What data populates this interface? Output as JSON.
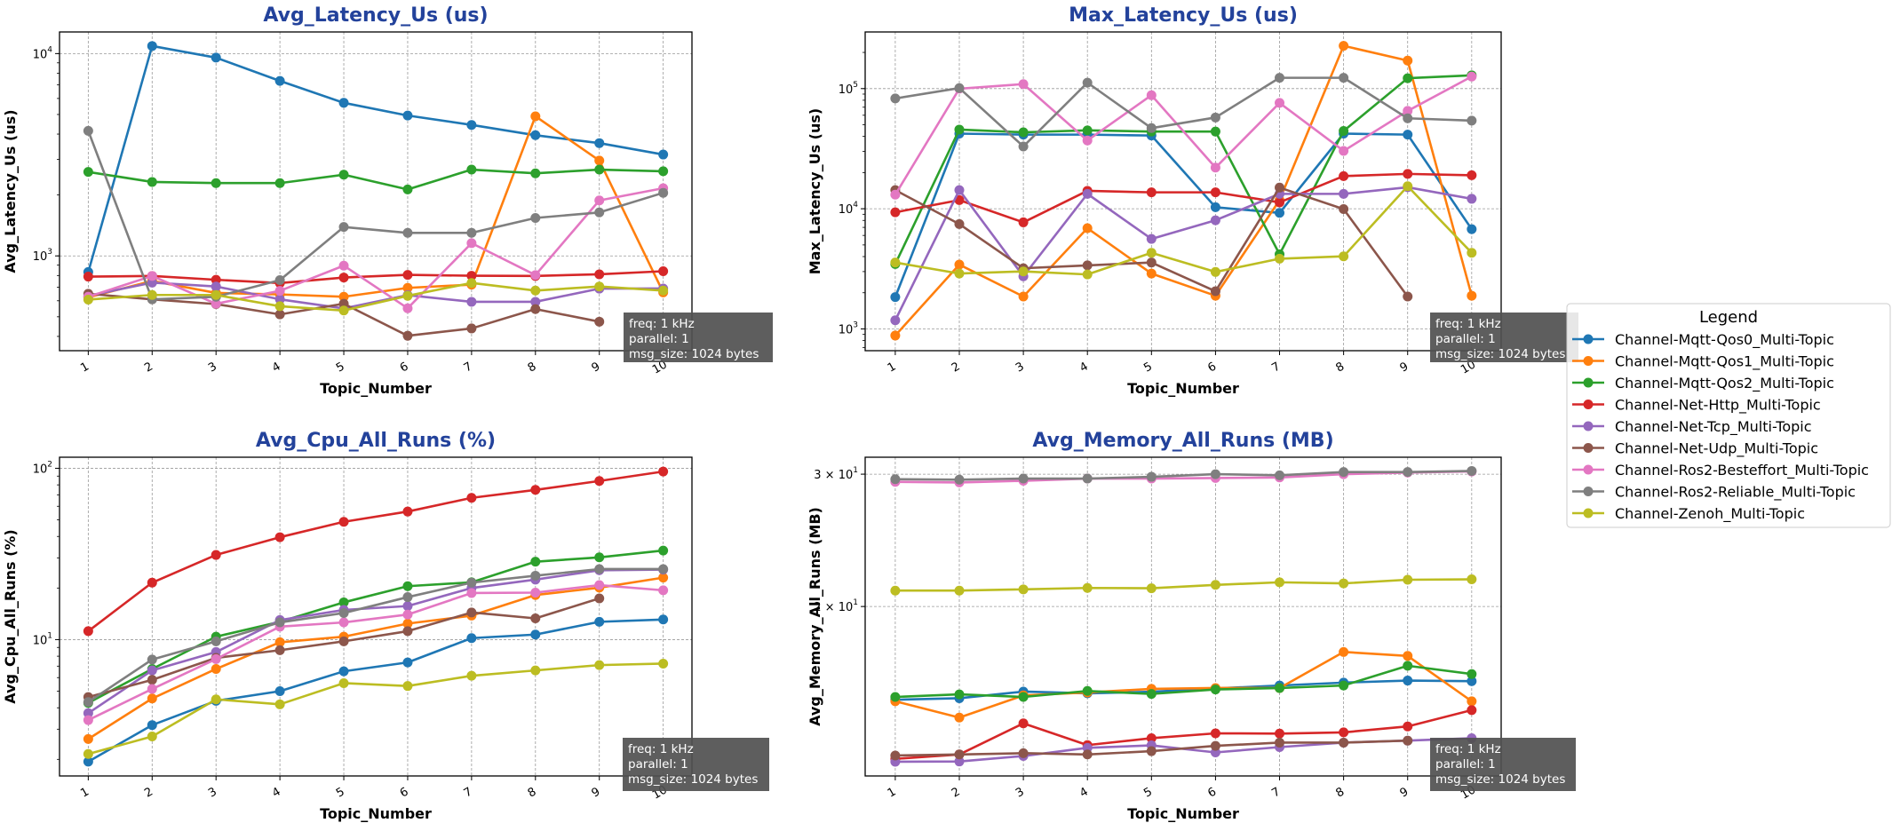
{
  "title_color": "#23429b",
  "legend": {
    "title": "Legend",
    "location": "right",
    "entries": [
      {
        "name": "Channel-Mqtt-Qos0_Multi-Topic",
        "color": "#1f77b4"
      },
      {
        "name": "Channel-Mqtt-Qos1_Multi-Topic",
        "color": "#ff7f0e"
      },
      {
        "name": "Channel-Mqtt-Qos2_Multi-Topic",
        "color": "#2ca02c"
      },
      {
        "name": "Channel-Net-Http_Multi-Topic",
        "color": "#d62728"
      },
      {
        "name": "Channel-Net-Tcp_Multi-Topic",
        "color": "#9467bd"
      },
      {
        "name": "Channel-Net-Udp_Multi-Topic",
        "color": "#8c564b"
      },
      {
        "name": "Channel-Ros2-Besteffort_Multi-Topic",
        "color": "#e377c2"
      },
      {
        "name": "Channel-Ros2-Reliable_Multi-Topic",
        "color": "#7f7f7f"
      },
      {
        "name": "Channel-Zenoh_Multi-Topic",
        "color": "#bcbd22"
      }
    ]
  },
  "chart_data": [
    {
      "type": "line",
      "title": "Avg_Latency_Us  (us)",
      "xlabel": "Topic_Number",
      "ylabel": "Avg_Latency_Us (us)",
      "yscale": "log",
      "grid": true,
      "xlim": [
        0.55,
        10.45
      ],
      "ylim": [
        340,
        12790
      ],
      "categories": [
        "1",
        "2",
        "3",
        "4",
        "5",
        "6",
        "7",
        "8",
        "9",
        "10"
      ],
      "yticks": [
        {
          "value": 1000,
          "mantissa": "10",
          "exp": "3"
        },
        {
          "value": 10000,
          "mantissa": "10",
          "exp": "4"
        }
      ],
      "annotation": [
        "freq: 1 kHz",
        "parallel: 1",
        "msg_size: 1024 bytes"
      ],
      "series": [
        {
          "name": "Channel-Mqtt-Qos0_Multi-Topic",
          "values": [
            832,
            10900,
            9550,
            7330,
            5710,
            4940,
            4440,
            3950,
            3610,
            3170
          ]
        },
        {
          "name": "Channel-Mqtt-Qos1_Multi-Topic",
          "values": [
            624,
            752,
            656,
            645,
            628,
            695,
            721,
            4900,
            2960,
            660
          ]
        },
        {
          "name": "Channel-Mqtt-Qos2_Multi-Topic",
          "values": [
            2600,
            2320,
            2290,
            2290,
            2520,
            2130,
            2670,
            2560,
            2670,
            2620
          ]
        },
        {
          "name": "Channel-Net-Http_Multi-Topic",
          "values": [
            790,
            796,
            762,
            734,
            782,
            806,
            798,
            796,
            811,
            840
          ]
        },
        {
          "name": "Channel-Net-Tcp_Multi-Topic",
          "values": [
            635,
            738,
            706,
            610,
            550,
            640,
            593,
            593,
            689,
            690
          ]
        },
        {
          "name": "Channel-Net-Udp_Multi-Topic",
          "values": [
            650,
            610,
            578,
            514,
            580,
            403,
            438,
            546,
            473,
            null
          ]
        },
        {
          "name": "Channel-Ros2-Besteffort_Multi-Topic",
          "values": [
            628,
            796,
            580,
            672,
            895,
            551,
            1156,
            804,
            1880,
            2160
          ]
        },
        {
          "name": "Channel-Ros2-Reliable_Multi-Topic",
          "values": [
            4150,
            610,
            628,
            759,
            1390,
            1300,
            1300,
            1540,
            1640,
            2050
          ]
        },
        {
          "name": "Channel-Zenoh_Multi-Topic",
          "values": [
            608,
            641,
            641,
            564,
            537,
            635,
            735,
            674,
            706,
            674
          ]
        }
      ]
    },
    {
      "type": "line",
      "title": "Max_Latency_Us  (us)",
      "xlabel": "Topic_Number",
      "ylabel": "Max_Latency_Us (us)",
      "yscale": "log",
      "grid": true,
      "xlim": [
        0.53,
        10.46
      ],
      "ylim": [
        659,
        296000
      ],
      "categories": [
        "1",
        "2",
        "3",
        "4",
        "5",
        "6",
        "7",
        "8",
        "9",
        "10"
      ],
      "yticks": [
        {
          "value": 1000,
          "mantissa": "10",
          "exp": "3"
        },
        {
          "value": 10000,
          "mantissa": "10",
          "exp": "4"
        },
        {
          "value": 100000,
          "mantissa": "10",
          "exp": "5"
        }
      ],
      "annotation": [
        "freq: 1 kHz",
        "parallel: 1",
        "msg_size: 1024 bytes"
      ],
      "series": [
        {
          "name": "Channel-Mqtt-Qos0_Multi-Topic",
          "values": [
            1840,
            42200,
            41400,
            41400,
            40700,
            10300,
            9240,
            42200,
            41400,
            6760
          ]
        },
        {
          "name": "Channel-Mqtt-Qos1_Multi-Topic",
          "values": [
            881,
            3430,
            1860,
            6890,
            2890,
            1890,
            11800,
            227000,
            171000,
            1890
          ]
        },
        {
          "name": "Channel-Mqtt-Qos2_Multi-Topic",
          "values": [
            3470,
            45600,
            43300,
            44900,
            43900,
            43900,
            4180,
            44400,
            122000,
            129000
          ]
        },
        {
          "name": "Channel-Net-Http_Multi-Topic",
          "values": [
            9340,
            11800,
            7710,
            14100,
            13700,
            13700,
            11300,
            18700,
            19500,
            19000
          ]
        },
        {
          "name": "Channel-Net-Tcp_Multi-Topic",
          "values": [
            1180,
            14300,
            2740,
            13300,
            5610,
            8020,
            13300,
            13300,
            15100,
            12100
          ]
        },
        {
          "name": "Channel-Net-Udp_Multi-Topic",
          "values": [
            14300,
            7460,
            3200,
            3380,
            3570,
            2060,
            15000,
            9940,
            1860,
            null
          ]
        },
        {
          "name": "Channel-Ros2-Besteffort_Multi-Topic",
          "values": [
            13100,
            99800,
            109000,
            37000,
            88100,
            22000,
            76000,
            30300,
            65200,
            126000
          ]
        },
        {
          "name": "Channel-Ros2-Reliable_Multi-Topic",
          "values": [
            82800,
            101000,
            33000,
            112000,
            46900,
            57500,
            123000,
            123000,
            56600,
            54100
          ]
        },
        {
          "name": "Channel-Zenoh_Multi-Topic",
          "values": [
            3570,
            2890,
            3010,
            2840,
            4300,
            2980,
            3840,
            4020,
            15400,
            4300
          ]
        }
      ]
    },
    {
      "type": "line",
      "title": "Avg_Cpu_All_Runs  (%)",
      "xlabel": "Topic_Number",
      "ylabel": "Avg_Cpu_All_Runs (%)",
      "yscale": "log",
      "grid": true,
      "xlim": [
        0.55,
        10.45
      ],
      "ylim": [
        1.6,
        116
      ],
      "categories": [
        "1",
        "2",
        "3",
        "4",
        "5",
        "6",
        "7",
        "8",
        "9",
        "10"
      ],
      "yticks": [
        {
          "value": 10,
          "mantissa": "10",
          "exp": "1"
        },
        {
          "value": 100,
          "mantissa": "10",
          "exp": "2"
        }
      ],
      "annotation": [
        "freq: 1 kHz",
        "parallel: 1",
        "msg_size: 1024 bytes"
      ],
      "series": [
        {
          "name": "Channel-Mqtt-Qos0_Multi-Topic",
          "values": [
            1.94,
            3.17,
            4.39,
            5.0,
            6.53,
            7.36,
            10.2,
            10.7,
            12.7,
            13.1
          ]
        },
        {
          "name": "Channel-Mqtt-Qos1_Multi-Topic",
          "values": [
            2.63,
            4.53,
            6.74,
            9.65,
            10.4,
            12.4,
            13.8,
            18.2,
            20.1,
            23.0
          ]
        },
        {
          "name": "Channel-Mqtt-Qos2_Multi-Topic",
          "values": [
            4.27,
            6.74,
            10.4,
            12.7,
            16.5,
            20.5,
            21.6,
            28.5,
            30.2,
            33.1
          ]
        },
        {
          "name": "Channel-Net-Http_Multi-Topic",
          "values": [
            11.2,
            21.5,
            31.2,
            39.6,
            48.7,
            55.9,
            67.2,
            74.8,
            84.3,
            95.7
          ]
        },
        {
          "name": "Channel-Net-Tcp_Multi-Topic",
          "values": [
            3.72,
            6.61,
            8.46,
            13.0,
            14.9,
            15.7,
            20.0,
            22.4,
            25.4,
            25.6
          ]
        },
        {
          "name": "Channel-Net-Udp_Multi-Topic",
          "values": [
            4.62,
            5.82,
            7.82,
            8.67,
            9.77,
            11.2,
            14.4,
            13.3,
            17.4,
            null
          ]
        },
        {
          "name": "Channel-Ros2-Besteffort_Multi-Topic",
          "values": [
            3.39,
            5.15,
            7.7,
            11.9,
            12.6,
            14.0,
            18.7,
            18.8,
            20.8,
            19.4
          ]
        },
        {
          "name": "Channel-Ros2-Reliable_Multi-Topic",
          "values": [
            4.32,
            7.65,
            9.77,
            12.6,
            14.3,
            17.7,
            21.5,
            23.6,
            25.8,
            25.8
          ]
        },
        {
          "name": "Channel-Zenoh_Multi-Topic",
          "values": [
            2.15,
            2.72,
            4.48,
            4.19,
            5.57,
            5.36,
            6.15,
            6.61,
            7.1,
            7.24
          ]
        }
      ]
    },
    {
      "type": "line",
      "title": "Avg_Memory_All_Runs  (MB)",
      "xlabel": "Topic_Number",
      "ylabel": "Avg_Memory_All_Runs (MB)",
      "yscale": "log",
      "grid": true,
      "xlim": [
        0.53,
        10.46
      ],
      "ylim": [
        11.9,
        31.6
      ],
      "categories": [
        "1",
        "2",
        "3",
        "4",
        "5",
        "6",
        "7",
        "8",
        "9",
        "10"
      ],
      "yticks": [
        {
          "value": 20,
          "mantissa": "2 × 10",
          "exp": "1"
        },
        {
          "value": 30,
          "mantissa": "3 × 10",
          "exp": "1"
        }
      ],
      "annotation": [
        "freq: 1 kHz",
        "parallel: 1",
        "msg_size: 1024 bytes"
      ],
      "series": [
        {
          "name": "Channel-Mqtt-Qos0_Multi-Topic",
          "values": [
            15.03,
            15.1,
            15.41,
            15.33,
            15.4,
            15.56,
            15.7,
            15.84,
            15.94,
            15.91
          ]
        },
        {
          "name": "Channel-Mqtt-Qos1_Multi-Topic",
          "values": [
            14.96,
            14.23,
            15.23,
            15.37,
            15.54,
            15.58,
            15.58,
            17.4,
            17.19,
            14.96
          ]
        },
        {
          "name": "Channel-Mqtt-Qos2_Multi-Topic",
          "values": [
            15.16,
            15.28,
            15.16,
            15.44,
            15.3,
            15.51,
            15.58,
            15.7,
            16.68,
            16.26
          ]
        },
        {
          "name": "Channel-Net-Http_Multi-Topic",
          "values": [
            12.54,
            12.71,
            13.98,
            13.08,
            13.36,
            13.56,
            13.55,
            13.6,
            13.85,
            14.56
          ]
        },
        {
          "name": "Channel-Net-Tcp_Multi-Topic",
          "values": [
            12.43,
            12.44,
            12.65,
            12.97,
            13.07,
            12.79,
            13.0,
            13.18,
            13.26,
            13.36
          ]
        },
        {
          "name": "Channel-Net-Udp_Multi-Topic",
          "values": [
            12.67,
            12.71,
            12.76,
            12.71,
            12.84,
            13.05,
            13.18,
            13.18,
            13.26,
            null
          ]
        },
        {
          "name": "Channel-Ros2-Besteffort_Multi-Topic",
          "values": [
            29.3,
            29.25,
            29.4,
            29.6,
            29.6,
            29.65,
            29.7,
            30.0,
            30.15,
            30.25
          ]
        },
        {
          "name": "Channel-Ros2-Reliable_Multi-Topic",
          "values": [
            29.54,
            29.5,
            29.6,
            29.6,
            29.76,
            30.0,
            29.9,
            30.2,
            30.2,
            30.3
          ]
        },
        {
          "name": "Channel-Zenoh_Multi-Topic",
          "values": [
            21.0,
            21.0,
            21.08,
            21.17,
            21.15,
            21.37,
            21.54,
            21.47,
            21.71,
            21.74
          ]
        }
      ]
    }
  ]
}
